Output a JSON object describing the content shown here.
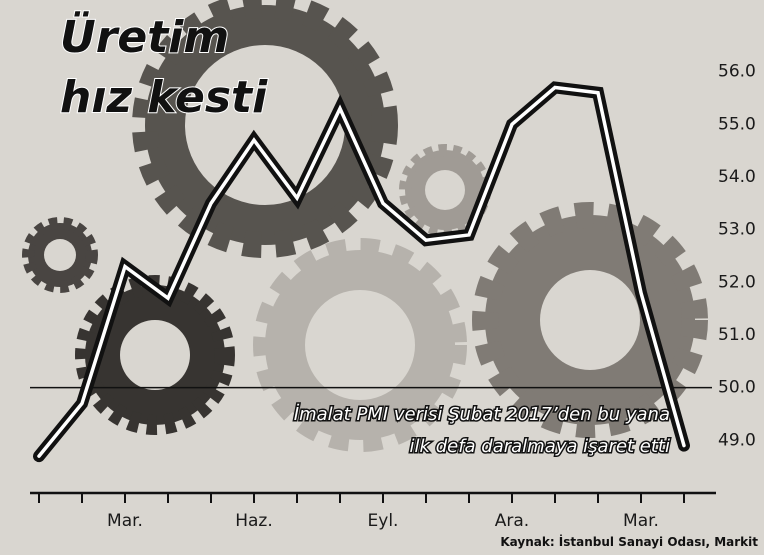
{
  "chart_data": {
    "type": "line",
    "title": [
      "Üretim",
      "hız kesti"
    ],
    "annotation": [
      "İmalat PMI verisi Şubat 2017’den bu yana",
      "ilk defa daralmaya işaret etti"
    ],
    "source": "Kaynak: İstanbul Sanayi Odası, Markit",
    "categories": [
      null,
      null,
      "Mar.",
      null,
      null,
      "Haz.",
      null,
      null,
      "Eyl.",
      null,
      null,
      "Ara.",
      null,
      null,
      "Mar.",
      null
    ],
    "values": [
      48.7,
      49.7,
      52.3,
      51.7,
      53.5,
      54.7,
      53.6,
      55.3,
      53.5,
      52.8,
      52.9,
      55.0,
      55.7,
      55.6,
      51.8,
      48.9
    ],
    "color": "#111111",
    "ylim": [
      48,
      57
    ],
    "yticks": [
      {
        "value": 49,
        "label": "49.0"
      },
      {
        "value": 50,
        "label": "50.0"
      },
      {
        "value": 51,
        "label": "51.0"
      },
      {
        "value": 52,
        "label": "52.0"
      },
      {
        "value": 53,
        "label": "53.0"
      },
      {
        "value": 54,
        "label": "54.0"
      },
      {
        "value": 55,
        "label": "55.0"
      },
      {
        "value": 56,
        "label": "56.0"
      }
    ],
    "reference_y": 50
  }
}
